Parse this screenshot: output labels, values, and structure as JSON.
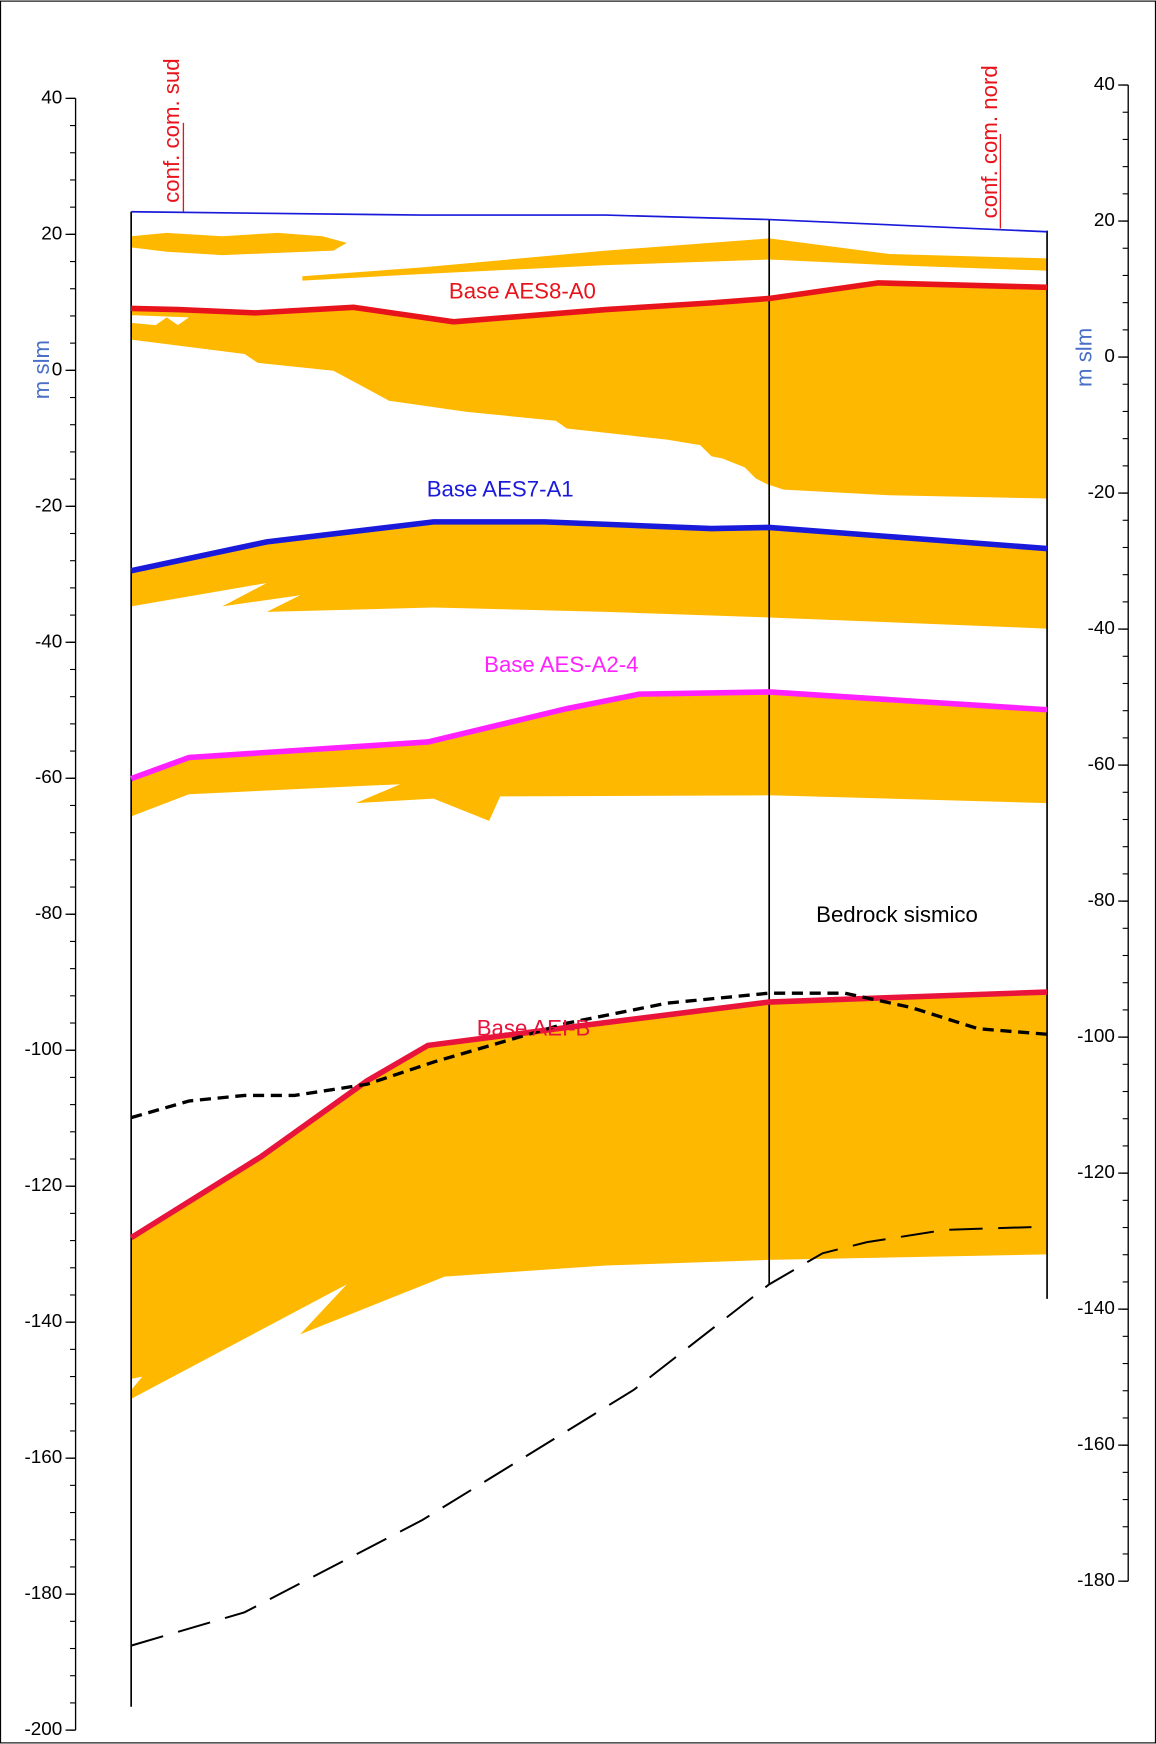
{
  "header": {
    "label_left": "conf. com. sud",
    "label_right": "conf. com. nord"
  },
  "axes": {
    "left": {
      "label": "m slm",
      "ylim": [
        -200,
        40
      ],
      "yticks": [
        40,
        20,
        0,
        -20,
        -40,
        -60,
        -80,
        -100,
        -120,
        -140,
        -160,
        -180,
        -200
      ]
    },
    "right": {
      "label": "m slm",
      "ylim": [
        -180,
        40
      ],
      "yticks": [
        40,
        20,
        0,
        -20,
        -40,
        -60,
        -80,
        -100,
        -120,
        -140,
        -160,
        -180
      ]
    }
  },
  "annotations": [
    {
      "text": "Base AES8-A0",
      "color": "#e8141c"
    },
    {
      "text": "Base AES7-A1",
      "color": "#1a1adb"
    },
    {
      "text": "Base AES-A2-4",
      "color": "#ff22ff"
    },
    {
      "text": "Bedrock sismico",
      "color": "#000000"
    },
    {
      "text": "Base AEI-B",
      "color": "#e8143c"
    }
  ]
}
